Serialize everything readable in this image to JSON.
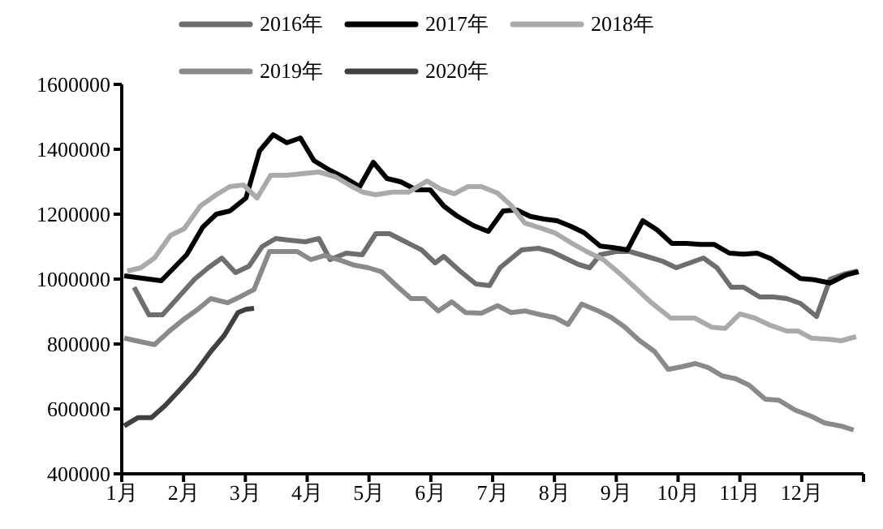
{
  "chart_data": {
    "type": "line",
    "legend": "top",
    "grid": false,
    "marker": "none",
    "line_style": "solid",
    "xlim": [
      1,
      13
    ],
    "xticks": [
      {
        "value": 1,
        "label": "1月"
      },
      {
        "value": 2,
        "label": "2月"
      },
      {
        "value": 3,
        "label": "3月"
      },
      {
        "value": 4,
        "label": "4月"
      },
      {
        "value": 5,
        "label": "5月"
      },
      {
        "value": 6,
        "label": "6月"
      },
      {
        "value": 7,
        "label": "7月"
      },
      {
        "value": 8,
        "label": "8月"
      },
      {
        "value": 9,
        "label": "9月"
      },
      {
        "value": 10,
        "label": "10月"
      },
      {
        "value": 11,
        "label": "11月"
      },
      {
        "value": 12,
        "label": "12月"
      },
      {
        "value": 13,
        "label": null
      }
    ],
    "ylim": [
      400000,
      1600000
    ],
    "yticks": [
      400000,
      600000,
      800000,
      1000000,
      1200000,
      1400000,
      1600000
    ],
    "series": [
      {
        "name": "2016年",
        "color": "#6e6e6e",
        "x": [
          1.2,
          1.44,
          1.66,
          1.92,
          2.18,
          2.4,
          2.62,
          2.84,
          3.06,
          3.27,
          3.49,
          3.71,
          3.97,
          4.19,
          4.37,
          4.63,
          4.89,
          5.11,
          5.33,
          5.59,
          5.85,
          6.07,
          6.21,
          6.47,
          6.73,
          6.95,
          7.12,
          7.47,
          7.74,
          7.95,
          8.17,
          8.39,
          8.57,
          8.74,
          9.0,
          9.22,
          9.49,
          9.75,
          9.97,
          10.19,
          10.41,
          10.63,
          10.86,
          11.06,
          11.32,
          11.54,
          11.76,
          11.98,
          12.24,
          12.46,
          12.68,
          12.9
        ],
        "values": [
          975000,
          890000,
          890000,
          945000,
          1000000,
          1035000,
          1065000,
          1020000,
          1040000,
          1100000,
          1125000,
          1120000,
          1115000,
          1125000,
          1060000,
          1080000,
          1075000,
          1140000,
          1140000,
          1115000,
          1090000,
          1050000,
          1070000,
          1025000,
          985000,
          980000,
          1035000,
          1090000,
          1095000,
          1085000,
          1065000,
          1045000,
          1035000,
          1075000,
          1085000,
          1085000,
          1070000,
          1055000,
          1035000,
          1050000,
          1065000,
          1035000,
          975000,
          975000,
          945000,
          945000,
          940000,
          925000,
          885000,
          1000000,
          1015000,
          1025000
        ]
      },
      {
        "name": "2017年",
        "color": "#000000",
        "x": [
          1.04,
          1.64,
          2.05,
          2.31,
          2.53,
          2.75,
          3.01,
          3.23,
          3.45,
          3.67,
          3.89,
          4.11,
          4.37,
          4.63,
          4.85,
          5.07,
          5.29,
          5.51,
          5.77,
          5.99,
          6.21,
          6.42,
          6.69,
          6.93,
          7.17,
          7.39,
          7.61,
          7.83,
          8.04,
          8.26,
          8.48,
          8.74,
          8.96,
          9.18,
          9.43,
          9.66,
          9.9,
          10.14,
          10.36,
          10.58,
          10.83,
          11.06,
          11.28,
          11.5,
          11.76,
          11.98,
          12.2,
          12.46,
          12.72,
          12.92
        ],
        "values": [
          1010000,
          995000,
          1075000,
          1160000,
          1200000,
          1210000,
          1250000,
          1395000,
          1445000,
          1420000,
          1435000,
          1365000,
          1335000,
          1310000,
          1285000,
          1360000,
          1310000,
          1300000,
          1275000,
          1275000,
          1225000,
          1195000,
          1165000,
          1147000,
          1210000,
          1213000,
          1193000,
          1185000,
          1180000,
          1163000,
          1143000,
          1102000,
          1097000,
          1090000,
          1180000,
          1152000,
          1110000,
          1110000,
          1107000,
          1107000,
          1080000,
          1077000,
          1080000,
          1063000,
          1030000,
          1002000,
          998000,
          988000,
          1013000,
          1023000
        ]
      },
      {
        "name": "2018年",
        "color": "#aaaaaa",
        "x": [
          1.09,
          1.31,
          1.53,
          1.79,
          2.01,
          2.27,
          2.53,
          2.75,
          2.97,
          3.19,
          3.41,
          3.67,
          3.93,
          4.19,
          4.46,
          4.68,
          4.9,
          5.11,
          5.38,
          5.64,
          5.94,
          6.16,
          6.38,
          6.6,
          6.82,
          7.08,
          7.3,
          7.52,
          7.78,
          8.0,
          8.26,
          8.52,
          8.79,
          9.05,
          9.31,
          9.57,
          9.88,
          10.1,
          10.27,
          10.54,
          10.76,
          11.0,
          11.24,
          11.5,
          11.76,
          11.94,
          12.16,
          12.42,
          12.64,
          12.88
        ],
        "values": [
          1025000,
          1035000,
          1065000,
          1135000,
          1155000,
          1225000,
          1260000,
          1285000,
          1290000,
          1250000,
          1320000,
          1320000,
          1325000,
          1330000,
          1315000,
          1290000,
          1268000,
          1260000,
          1268000,
          1268000,
          1302000,
          1277000,
          1263000,
          1285000,
          1285000,
          1265000,
          1227000,
          1173000,
          1157000,
          1143000,
          1113000,
          1085000,
          1060000,
          1018000,
          973000,
          927000,
          880000,
          880000,
          880000,
          852000,
          848000,
          893000,
          880000,
          857000,
          840000,
          840000,
          818000,
          815000,
          810000,
          823000
        ]
      },
      {
        "name": "2019年",
        "color": "#8a8a8a",
        "x": [
          1.04,
          1.31,
          1.53,
          1.79,
          2.01,
          2.23,
          2.44,
          2.71,
          2.93,
          3.14,
          3.39,
          3.62,
          3.84,
          4.06,
          4.28,
          4.55,
          4.76,
          4.99,
          5.2,
          5.46,
          5.68,
          5.9,
          6.12,
          6.34,
          6.56,
          6.82,
          7.08,
          7.3,
          7.52,
          7.78,
          8.0,
          8.22,
          8.44,
          8.71,
          8.92,
          9.14,
          9.36,
          9.62,
          9.84,
          10.06,
          10.28,
          10.49,
          10.71,
          10.93,
          11.15,
          11.41,
          11.63,
          11.89,
          12.16,
          12.37,
          12.64,
          12.84
        ],
        "values": [
          818000,
          807000,
          798000,
          843000,
          877000,
          907000,
          940000,
          927000,
          947000,
          968000,
          1085000,
          1085000,
          1085000,
          1060000,
          1073000,
          1057000,
          1043000,
          1035000,
          1023000,
          977000,
          940000,
          940000,
          902000,
          930000,
          897000,
          895000,
          918000,
          897000,
          902000,
          890000,
          882000,
          860000,
          923000,
          902000,
          882000,
          852000,
          813000,
          777000,
          722000,
          730000,
          740000,
          727000,
          702000,
          693000,
          673000,
          630000,
          627000,
          597000,
          577000,
          557000,
          547000,
          535000
        ]
      },
      {
        "name": "2020年",
        "color": "#404040",
        "x": [
          1.04,
          1.26,
          1.48,
          1.7,
          1.96,
          2.18,
          2.44,
          2.66,
          2.88,
          3.01,
          3.14
        ],
        "values": [
          548000,
          573000,
          573000,
          610000,
          663000,
          710000,
          777000,
          827000,
          897000,
          907000,
          910000
        ]
      }
    ]
  }
}
